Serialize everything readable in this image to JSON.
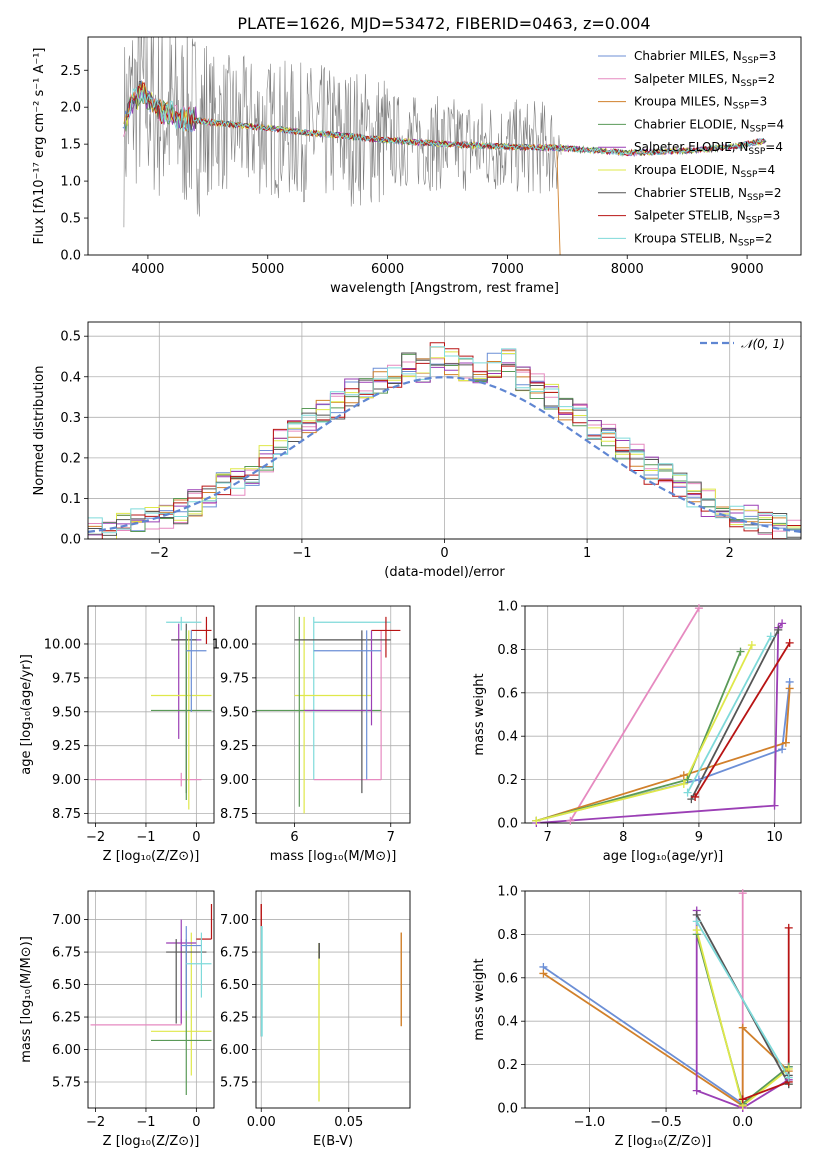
{
  "figure": {
    "title": "PLATE=1626, MJD=53472, FIBERID=0463, z=0.004"
  },
  "colors": {
    "data": "#808080",
    "grid": "#b0b0b0",
    "gaussian": "#5f86d2",
    "models": [
      "#6c8fd6",
      "#e68ac0",
      "#d1802b",
      "#5a9a58",
      "#9b3fb5",
      "#dfe84a",
      "#555555",
      "#b81414",
      "#7fdada"
    ]
  },
  "legend_labels": [
    {
      "pre": "Chabrier MILES, N",
      "sub": "SSP",
      "post": "=3"
    },
    {
      "pre": "Salpeter MILES, N",
      "sub": "SSP",
      "post": "=2"
    },
    {
      "pre": "Kroupa MILES, N",
      "sub": "SSP",
      "post": "=3"
    },
    {
      "pre": "Chabrier ELODIE, N",
      "sub": "SSP",
      "post": "=4"
    },
    {
      "pre": "Salpeter ELODIE, N",
      "sub": "SSP",
      "post": "=4"
    },
    {
      "pre": "Kroupa ELODIE, N",
      "sub": "SSP",
      "post": "=4"
    },
    {
      "pre": "Chabrier STELIB, N",
      "sub": "SSP",
      "post": "=2"
    },
    {
      "pre": "Salpeter STELIB, N",
      "sub": "SSP",
      "post": "=3"
    },
    {
      "pre": "Kroupa STELIB, N",
      "sub": "SSP",
      "post": "=2"
    }
  ],
  "chart_data": [
    {
      "id": "spectrum",
      "type": "line",
      "xlabel": "wavelength [Angstrom, rest frame]",
      "ylabel": "Flux [fλ10⁻¹⁷ erg cm⁻² s⁻¹ A⁻¹]",
      "xlim": [
        3500,
        9450
      ],
      "ylim": [
        0,
        2.95
      ],
      "xticks": [
        4000,
        5000,
        6000,
        7000,
        8000,
        9000
      ],
      "yticks": [
        0.0,
        0.5,
        1.0,
        1.5,
        2.0,
        2.5
      ],
      "data_trace": {
        "name": "data",
        "x_range": [
          3800,
          7450
        ],
        "approx_level": 1.5
      },
      "model_continuum": {
        "x": [
          3790,
          3850,
          3950,
          4100,
          4300,
          4500,
          4800,
          5000,
          5300,
          5600,
          5900,
          6200,
          6500,
          6800,
          7100,
          7400,
          7700,
          8000,
          8300,
          8600,
          8900,
          9160
        ],
        "y": [
          1.6,
          2.05,
          2.2,
          1.95,
          1.85,
          1.8,
          1.75,
          1.72,
          1.66,
          1.62,
          1.57,
          1.53,
          1.5,
          1.48,
          1.46,
          1.45,
          1.42,
          1.38,
          1.4,
          1.42,
          1.47,
          1.55
        ]
      }
    },
    {
      "id": "residual-histogram",
      "type": "line",
      "xlabel": "(data-model)/error",
      "ylabel": "Normed distribution",
      "xlim": [
        -2.5,
        2.5
      ],
      "ylim": [
        0,
        0.535
      ],
      "xticks": [
        -2,
        -1,
        0,
        1,
        2
      ],
      "yticks": [
        0.0,
        0.1,
        0.2,
        0.3,
        0.4,
        0.5
      ],
      "legend": "$\\mathcal{N}(0,1)$",
      "gaussian": {
        "mean": 0,
        "sigma": 1
      },
      "bin_width": 0.1,
      "bin_start": -2.5,
      "counts": [
        0.02,
        0.02,
        0.03,
        0.04,
        0.05,
        0.05,
        0.07,
        0.09,
        0.11,
        0.13,
        0.14,
        0.16,
        0.2,
        0.24,
        0.26,
        0.29,
        0.31,
        0.33,
        0.36,
        0.38,
        0.39,
        0.4,
        0.43,
        0.42,
        0.45,
        0.44,
        0.42,
        0.41,
        0.43,
        0.44,
        0.4,
        0.38,
        0.35,
        0.32,
        0.3,
        0.28,
        0.26,
        0.22,
        0.2,
        0.17,
        0.16,
        0.13,
        0.11,
        0.09,
        0.08,
        0.06,
        0.05,
        0.04,
        0.03,
        0.02
      ]
    },
    {
      "id": "age-vs-Z",
      "type": "scatter",
      "xlabel": "Z [log₁₀(Z/Z⊙)]",
      "ylabel": "age  [log₁₀(age/yr)]",
      "xlim": [
        -2.15,
        0.35
      ],
      "ylim": [
        8.68,
        10.28
      ],
      "xticks": [
        -2,
        -1,
        0
      ],
      "yticks": [
        8.75,
        9.0,
        9.25,
        9.5,
        9.75,
        10.0
      ],
      "marks": [
        {
          "c": 8,
          "x0": -0.6,
          "x1": 0.1,
          "y0": 10.16,
          "y1": 10.16,
          "vx": -0.3,
          "vy0": 10.1,
          "vy1": 10.2
        },
        {
          "c": 4,
          "x0": -0.4,
          "x1": 0.1,
          "y0": 10.03,
          "y1": 10.03,
          "vx": -0.35,
          "vy0": 9.3,
          "vy1": 10.15
        },
        {
          "c": 6,
          "x0": -0.5,
          "x1": 0.0,
          "y0": 10.03,
          "y1": 10.03,
          "vx": -0.2,
          "vy0": 8.9,
          "vy1": 10.15
        },
        {
          "c": 1,
          "x0": -2.1,
          "x1": 0.1,
          "y0": 9.0,
          "y1": 9.0,
          "vx": -0.3,
          "vy0": 8.95,
          "vy1": 9.05
        },
        {
          "c": 5,
          "x0": -0.9,
          "x1": 0.3,
          "y0": 9.62,
          "y1": 9.62,
          "vx": -0.15,
          "vy0": 8.78,
          "vy1": 10.1
        },
        {
          "c": 3,
          "x0": -0.9,
          "x1": 0.3,
          "y0": 9.51,
          "y1": 9.51,
          "vx": -0.2,
          "vy0": 8.85,
          "vy1": 10.1
        },
        {
          "c": 7,
          "x0": -0.1,
          "x1": 0.3,
          "y0": 10.1,
          "y1": 10.1,
          "vx": 0.2,
          "vy0": 10.0,
          "vy1": 10.2
        },
        {
          "c": 0,
          "x0": -0.2,
          "x1": 0.2,
          "y0": 9.95,
          "y1": 9.95,
          "vx": -0.1,
          "vy0": 9.5,
          "vy1": 10.1
        }
      ]
    },
    {
      "id": "age-vs-mass",
      "type": "scatter",
      "xlabel": "mass [log₁₀(M/M⊙)]",
      "ylabel": "",
      "xlim": [
        5.6,
        7.2
      ],
      "ylim": [
        8.68,
        10.28
      ],
      "xticks": [
        6,
        7
      ],
      "yticks": [
        8.75,
        9.0,
        9.25,
        9.5,
        9.75,
        10.0
      ],
      "marks": [
        {
          "c": 8,
          "x0": 6.2,
          "x1": 7.0,
          "y0": 10.16,
          "y1": 10.16,
          "vx": 6.2,
          "vy0": 9.0,
          "vy1": 10.2
        },
        {
          "c": 1,
          "x0": 6.2,
          "x1": 6.9,
          "y0": 9.0,
          "y1": 9.0,
          "vx": 6.9,
          "vy0": 9.0,
          "vy1": 10.1
        },
        {
          "c": 5,
          "x0": 6.0,
          "x1": 6.8,
          "y0": 9.62,
          "y1": 9.62,
          "vx": 6.1,
          "vy0": 8.75,
          "vy1": 10.2
        },
        {
          "c": 3,
          "x0": 5.6,
          "x1": 6.9,
          "y0": 9.51,
          "y1": 9.51,
          "vx": 6.05,
          "vy0": 8.8,
          "vy1": 10.2
        },
        {
          "c": 6,
          "x0": 6.0,
          "x1": 7.0,
          "y0": 10.03,
          "y1": 10.03,
          "vx": 6.7,
          "vy0": 8.9,
          "vy1": 10.1
        },
        {
          "c": 4,
          "x0": 6.1,
          "x1": 6.8,
          "y0": 9.51,
          "y1": 9.51,
          "vx": 6.8,
          "vy0": 9.4,
          "vy1": 10.1
        },
        {
          "c": 0,
          "x0": 6.2,
          "x1": 6.9,
          "y0": 9.95,
          "y1": 9.95,
          "vx": 6.75,
          "vy0": 9.0,
          "vy1": 10.1
        },
        {
          "c": 7,
          "x0": 6.8,
          "x1": 7.1,
          "y0": 10.1,
          "y1": 10.1,
          "vx": 6.95,
          "vy0": 9.9,
          "vy1": 10.2
        }
      ]
    },
    {
      "id": "weight-vs-age",
      "type": "line",
      "xlabel": "age  [log₁₀(age/yr)]",
      "ylabel": "mass weight",
      "xlim": [
        6.7,
        10.35
      ],
      "ylim": [
        0,
        1.0
      ],
      "xticks": [
        7,
        8,
        9,
        10
      ],
      "yticks": [
        0.0,
        0.2,
        0.4,
        0.6,
        0.8,
        1.0
      ],
      "series": [
        {
          "c": 0,
          "x": [
            6.85,
            9.0,
            10.1,
            10.2
          ],
          "y": [
            0.01,
            0.2,
            0.34,
            0.65
          ]
        },
        {
          "c": 1,
          "x": [
            7.3,
            9.0
          ],
          "y": [
            0.01,
            0.99
          ]
        },
        {
          "c": 2,
          "x": [
            6.85,
            8.8,
            10.15,
            10.2
          ],
          "y": [
            0.01,
            0.22,
            0.37,
            0.62
          ]
        },
        {
          "c": 3,
          "x": [
            6.85,
            8.85,
            9.55
          ],
          "y": [
            0.01,
            0.2,
            0.79
          ]
        },
        {
          "c": 4,
          "x": [
            6.85,
            10.0,
            10.05,
            10.1
          ],
          "y": [
            0.0,
            0.08,
            0.9,
            0.92
          ]
        },
        {
          "c": 5,
          "x": [
            6.85,
            8.8,
            9.7
          ],
          "y": [
            0.01,
            0.18,
            0.82
          ]
        },
        {
          "c": 6,
          "x": [
            8.9,
            10.05
          ],
          "y": [
            0.11,
            0.89
          ]
        },
        {
          "c": 7,
          "x": [
            8.95,
            10.2
          ],
          "y": [
            0.12,
            0.83
          ]
        },
        {
          "c": 8,
          "x": [
            8.85,
            9.95
          ],
          "y": [
            0.14,
            0.86
          ]
        }
      ]
    },
    {
      "id": "mass-vs-Z",
      "type": "scatter",
      "xlabel": "Z [log₁₀(Z/Z⊙)]",
      "ylabel": "mass [log₁₀(M/M⊙)]",
      "xlim": [
        -2.15,
        0.35
      ],
      "ylim": [
        5.55,
        7.22
      ],
      "xticks": [
        -2,
        -1,
        0
      ],
      "yticks": [
        5.75,
        6.0,
        6.25,
        6.5,
        6.75,
        7.0
      ],
      "marks": [
        {
          "c": 1,
          "x0": -2.1,
          "x1": -0.3,
          "y0": 6.19,
          "y1": 6.19,
          "vx": -0.3,
          "vy0": 6.19,
          "vy1": 6.85
        },
        {
          "c": 5,
          "x0": -0.9,
          "x1": 0.3,
          "y0": 6.14,
          "y1": 6.14,
          "vx": -0.1,
          "vy0": 5.8,
          "vy1": 6.9
        },
        {
          "c": 3,
          "x0": -0.9,
          "x1": 0.3,
          "y0": 6.07,
          "y1": 6.07,
          "vx": -0.2,
          "vy0": 5.65,
          "vy1": 6.85
        },
        {
          "c": 4,
          "x0": -0.6,
          "x1": 0.0,
          "y0": 6.82,
          "y1": 6.82,
          "vx": -0.3,
          "vy0": 6.2,
          "vy1": 7.0
        },
        {
          "c": 6,
          "x0": -0.6,
          "x1": 0.2,
          "y0": 6.75,
          "y1": 6.75,
          "vx": -0.4,
          "vy0": 6.2,
          "vy1": 6.85
        },
        {
          "c": 0,
          "x0": -0.3,
          "x1": 0.1,
          "y0": 6.8,
          "y1": 6.8,
          "vx": -0.2,
          "vy0": 6.3,
          "vy1": 6.95
        },
        {
          "c": 7,
          "x0": 0.0,
          "x1": 0.3,
          "y0": 6.85,
          "y1": 6.85,
          "vx": 0.3,
          "vy0": 6.85,
          "vy1": 7.12
        },
        {
          "c": 8,
          "x0": -0.2,
          "x1": 0.3,
          "y0": 6.66,
          "y1": 6.66,
          "vx": 0.1,
          "vy0": 6.4,
          "vy1": 6.9
        }
      ]
    },
    {
      "id": "mass-vs-EBV",
      "type": "scatter",
      "xlabel": "E(B-V)",
      "ylabel": "",
      "xlim": [
        -0.003,
        0.085
      ],
      "ylim": [
        5.55,
        7.22
      ],
      "xticks": [
        0.0,
        0.05
      ],
      "yticks": [
        5.75,
        6.0,
        6.25,
        6.5,
        6.75,
        7.0
      ],
      "marks": [
        {
          "c": 7,
          "x0": 0.0,
          "x1": 0.0,
          "y0": 6.1,
          "y1": 7.12,
          "vx": 0.0,
          "vy0": 6.1,
          "vy1": 7.12
        },
        {
          "c": 8,
          "x0": 0.0,
          "x1": 0.0,
          "y0": 6.1,
          "y1": 6.95,
          "vx": 0.0005,
          "vy0": 6.1,
          "vy1": 6.95
        },
        {
          "c": 5,
          "x0": 0.033,
          "x1": 0.033,
          "y0": 5.6,
          "y1": 6.82,
          "vx": 0.033,
          "vy0": 5.6,
          "vy1": 6.82
        },
        {
          "c": 6,
          "x0": 0.033,
          "x1": 0.033,
          "y0": 6.7,
          "y1": 6.82,
          "vx": 0.0332,
          "vy0": 6.7,
          "vy1": 6.82
        },
        {
          "c": 2,
          "x0": 0.08,
          "x1": 0.08,
          "y0": 6.18,
          "y1": 6.9,
          "vx": 0.08,
          "vy0": 6.18,
          "vy1": 6.9
        }
      ]
    },
    {
      "id": "weight-vs-Z",
      "type": "line",
      "xlabel": "Z [log₁₀(Z/Z⊙)]",
      "ylabel": "mass weight",
      "xlim": [
        -1.42,
        0.38
      ],
      "ylim": [
        0,
        1.0
      ],
      "xticks": [
        -1.0,
        -0.5,
        0.0
      ],
      "yticks": [
        0.0,
        0.2,
        0.4,
        0.6,
        0.8,
        1.0
      ],
      "series": [
        {
          "c": 0,
          "x": [
            -1.3,
            0.0,
            0.3
          ],
          "y": [
            0.65,
            0.02,
            0.19
          ]
        },
        {
          "c": 1,
          "x": [
            0.0,
            0.0
          ],
          "y": [
            0.0,
            0.99
          ]
        },
        {
          "c": 2,
          "x": [
            -1.3,
            0.0,
            0.0,
            0.3
          ],
          "y": [
            0.62,
            0.01,
            0.37,
            0.17
          ]
        },
        {
          "c": 3,
          "x": [
            -0.3,
            0.0,
            0.3,
            0.3
          ],
          "y": [
            0.8,
            0.02,
            0.19,
            0.11
          ]
        },
        {
          "c": 4,
          "x": [
            -0.3,
            -0.3,
            0.0,
            0.3
          ],
          "y": [
            0.91,
            0.08,
            0.0,
            0.13
          ]
        },
        {
          "c": 5,
          "x": [
            -0.3,
            0.0,
            0.3
          ],
          "y": [
            0.82,
            0.01,
            0.18
          ]
        },
        {
          "c": 6,
          "x": [
            -0.3,
            0.3,
            0.3
          ],
          "y": [
            0.89,
            0.11,
            0.15
          ]
        },
        {
          "c": 7,
          "x": [
            0.0,
            0.3,
            0.3
          ],
          "y": [
            0.04,
            0.12,
            0.83
          ]
        },
        {
          "c": 8,
          "x": [
            -0.3,
            0.3
          ],
          "y": [
            0.86,
            0.14
          ]
        }
      ]
    }
  ]
}
